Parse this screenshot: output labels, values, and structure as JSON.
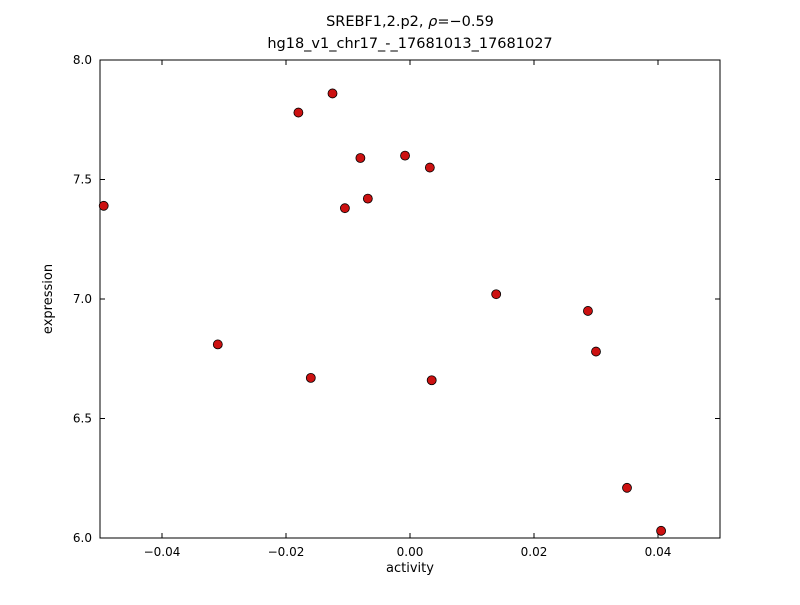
{
  "chart_data": {
    "type": "scatter",
    "title_parts": {
      "prefix": "SREBF1,2.p2, ",
      "rho": "ρ",
      "suffix": "=−0.59"
    },
    "subtitle": "hg18_v1_chr17_-_17681013_17681027",
    "xlabel": "activity",
    "ylabel": "expression",
    "xlim": [
      -0.05,
      0.05
    ],
    "ylim": [
      6.0,
      8.0
    ],
    "grid": false,
    "legend": null,
    "xticks": {
      "values": [
        -0.04,
        -0.02,
        0.0,
        0.02,
        0.04
      ],
      "labels": [
        "−0.04",
        "−0.02",
        "0.00",
        "0.02",
        "0.04"
      ]
    },
    "yticks": {
      "values": [
        6.0,
        6.5,
        7.0,
        7.5,
        8.0
      ],
      "labels": [
        "6.0",
        "6.5",
        "7.0",
        "7.5",
        "8.0"
      ]
    },
    "marker": {
      "fill": "#cc1111",
      "edge": "#000000",
      "radius": 4.5
    },
    "points": [
      {
        "x": -0.0494,
        "y": 7.39
      },
      {
        "x": -0.031,
        "y": 6.81
      },
      {
        "x": -0.018,
        "y": 7.78
      },
      {
        "x": -0.016,
        "y": 6.67
      },
      {
        "x": -0.0125,
        "y": 7.86
      },
      {
        "x": -0.0105,
        "y": 7.38
      },
      {
        "x": -0.008,
        "y": 7.59
      },
      {
        "x": -0.0068,
        "y": 7.42
      },
      {
        "x": -0.0008,
        "y": 7.6
      },
      {
        "x": 0.0032,
        "y": 7.55
      },
      {
        "x": 0.0035,
        "y": 6.66
      },
      {
        "x": 0.0139,
        "y": 7.02
      },
      {
        "x": 0.0287,
        "y": 6.95
      },
      {
        "x": 0.03,
        "y": 6.78
      },
      {
        "x": 0.035,
        "y": 6.21
      },
      {
        "x": 0.0405,
        "y": 6.03
      }
    ]
  }
}
